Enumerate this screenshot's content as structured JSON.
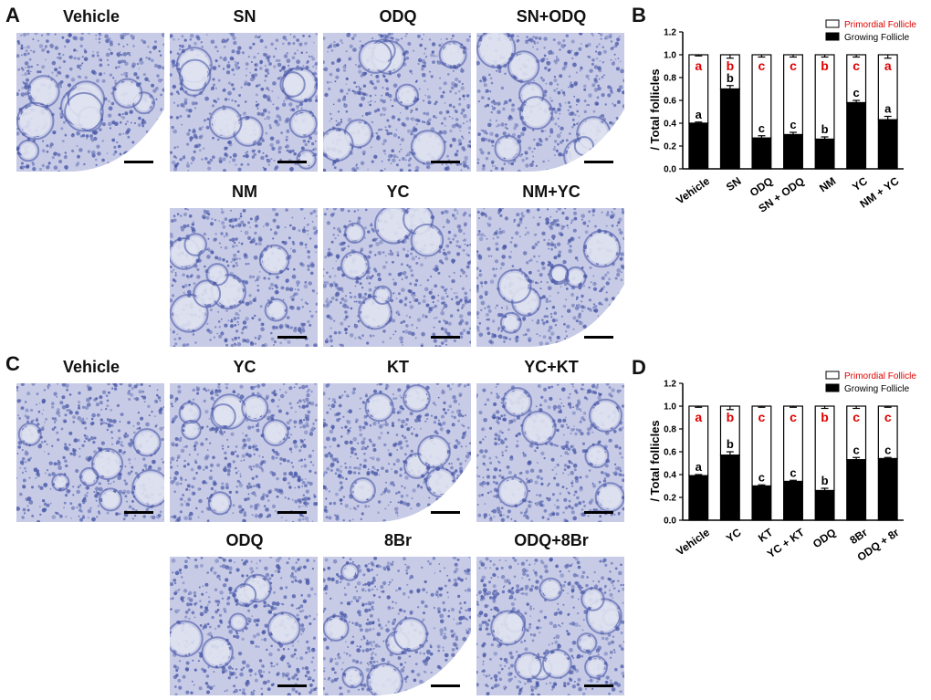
{
  "panels": {
    "A": {
      "letter": "A",
      "titles": [
        "Vehicle",
        "SN",
        "ODQ",
        "SN+ODQ",
        "NM",
        "YC",
        "NM+YC"
      ]
    },
    "B": {
      "letter": "B"
    },
    "C": {
      "letter": "C",
      "titles": [
        "Vehicle",
        "YC",
        "KT",
        "YC+KT",
        "ODQ",
        "8Br",
        "ODQ+8Br"
      ]
    },
    "D": {
      "letter": "D"
    }
  },
  "colors": {
    "stain_background": "#c7cbe6",
    "stain_cells": "#4b5aa8",
    "oocyte": "#dfe2ef",
    "growing": "#000000",
    "primordial": "#ffffff",
    "legend_red": "#e00000"
  },
  "chart_data": [
    {
      "type": "bar",
      "stacked": true,
      "panel": "B",
      "ylabel": "/ Total follicles",
      "ylim": [
        0,
        1.2
      ],
      "yticks": [
        "0.0",
        "0.2",
        "0.4",
        "0.6",
        "0.8",
        "1.0",
        "1.2"
      ],
      "categories": [
        "Vehicle",
        "SN",
        "ODQ",
        "SN + ODQ",
        "NM",
        "YC",
        "NM + YC"
      ],
      "series": [
        {
          "name": "Growing Follicle",
          "values": [
            0.4,
            0.7,
            0.27,
            0.3,
            0.26,
            0.58,
            0.43
          ],
          "errors": [
            0.01,
            0.03,
            0.02,
            0.02,
            0.02,
            0.02,
            0.03
          ],
          "labels": [
            "a",
            "b",
            "c",
            "c",
            "b",
            "c",
            "a"
          ]
        },
        {
          "name": "Primordial Follicle",
          "values": [
            0.6,
            0.3,
            0.73,
            0.7,
            0.74,
            0.42,
            0.57
          ],
          "errors": [
            0.01,
            0.03,
            0.02,
            0.02,
            0.02,
            0.02,
            0.03
          ],
          "labels": [
            "a",
            "b",
            "c",
            "c",
            "b",
            "c",
            "a"
          ]
        }
      ],
      "legend": "top-right"
    },
    {
      "type": "bar",
      "stacked": true,
      "panel": "D",
      "ylabel": "/ Total follicles",
      "ylim": [
        0,
        1.2
      ],
      "yticks": [
        "0.0",
        "0.2",
        "0.4",
        "0.6",
        "0.8",
        "1.0",
        "1.2"
      ],
      "categories": [
        "Vehicle",
        "YC",
        "KT",
        "YC + KT",
        "ODQ",
        "8Br",
        "ODQ + 8r"
      ],
      "series": [
        {
          "name": "Growing Follicle",
          "values": [
            0.39,
            0.57,
            0.3,
            0.34,
            0.26,
            0.53,
            0.54
          ],
          "errors": [
            0.01,
            0.03,
            0.01,
            0.01,
            0.02,
            0.02,
            0.01
          ],
          "labels": [
            "a",
            "b",
            "c",
            "c",
            "b",
            "c",
            "c"
          ]
        },
        {
          "name": "Primordial Follicle",
          "values": [
            0.61,
            0.43,
            0.7,
            0.66,
            0.74,
            0.47,
            0.46
          ],
          "errors": [
            0.01,
            0.03,
            0.01,
            0.01,
            0.02,
            0.02,
            0.01
          ],
          "labels": [
            "a",
            "b",
            "c",
            "c",
            "b",
            "c",
            "c"
          ]
        }
      ],
      "legend": "top-right"
    }
  ]
}
